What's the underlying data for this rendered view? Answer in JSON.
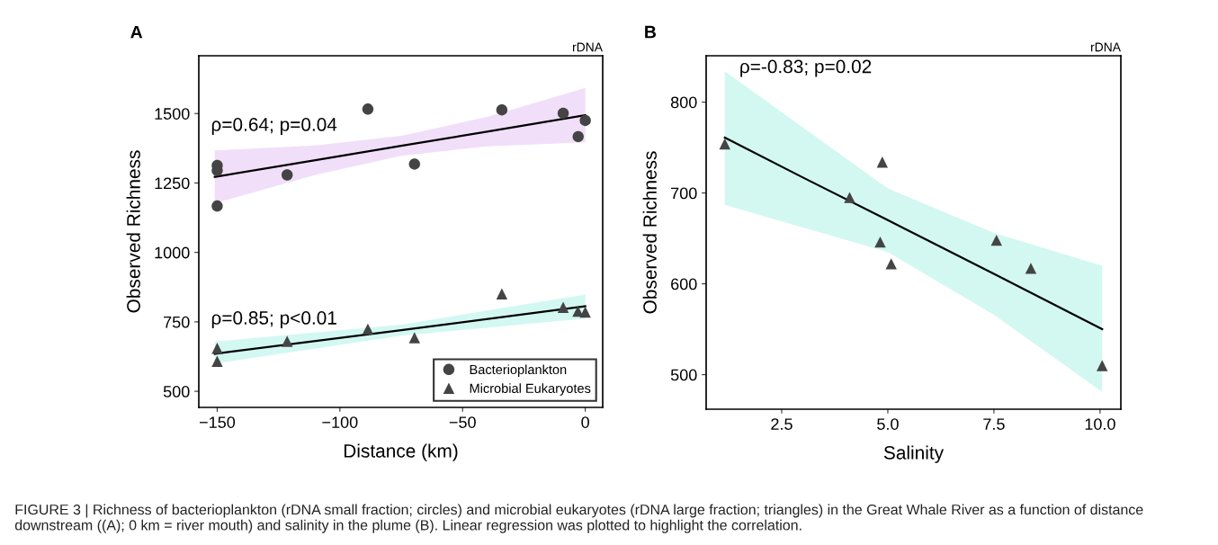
{
  "chart_data": [
    {
      "type": "scatter",
      "title": "A",
      "subtitle": "rDNA",
      "xlabel": "Distance (km)",
      "ylabel": "Observed Richness",
      "xlim": [
        -157.5,
        7.1
      ],
      "ylim": [
        442,
        1708
      ],
      "xticks": [
        {
          "value": -150,
          "label": "−150"
        },
        {
          "value": -100,
          "label": "−100"
        },
        {
          "value": -50,
          "label": "−50"
        },
        0
      ],
      "yticks": [
        500,
        750,
        1000,
        1250,
        1500
      ],
      "grid": false,
      "legend": "bottom right",
      "series": [
        {
          "type": "line",
          "color": "#000000",
          "x": [
            -151,
            -110,
            -75,
            -40,
            0
          ],
          "values": [
            1272,
            1332,
            1384,
            1435,
            1494
          ],
          "lower": [
            1177,
            1279,
            1348,
            1382,
            1396
          ],
          "upper": [
            1367,
            1385,
            1420,
            1488,
            1592
          ]
        },
        {
          "type": "line",
          "color": "#000000",
          "x": [
            -151,
            -75,
            0
          ],
          "values": [
            635,
            720,
            806
          ],
          "lower": [
            600,
            700,
            762
          ],
          "upper": [
            679,
            740,
            848
          ]
        },
        {
          "name": "Bacterioplankton",
          "marker": "circle",
          "color": "#444444",
          "x": [
            -150,
            -150,
            -150,
            -121.5,
            -88.6,
            -69.6,
            -34,
            -9,
            -2.9,
            0
          ],
          "values": [
            1313,
            1295,
            1167,
            1279,
            1516,
            1318,
            1513,
            1501,
            1417,
            1475
          ]
        },
        {
          "name": "Microbial Eukaryotes",
          "marker": "triangle",
          "color": "#444444",
          "x": [
            -150,
            -150,
            -121.5,
            -88.6,
            -69.6,
            -34,
            -9,
            -3,
            0
          ],
          "values": [
            655,
            608,
            680,
            724,
            693,
            851,
            802,
            788,
            785
          ]
        }
      ],
      "annotations": [
        "ρ=0.64; p=0.04",
        "ρ=0.85; p<0.01",
        "FIGURE 3 | Richness of bacterioplankton (rDNA small fraction; circles) and microbial eukaryotes (rDNA large fraction; triangles) in the Great Whale River as a function of distance downstream ((A); 0 km = river mouth) and salinity in the plume (B). Linear regression was plotted to highlight the correlation."
      ]
    },
    {
      "type": "scatter",
      "title": "B",
      "subtitle": "rDNA",
      "xlabel": "Salinity",
      "ylabel": "Observed Richness",
      "xlim": [
        0.72,
        10.49
      ],
      "ylim": [
        462,
        851
      ],
      "xticks": [
        {
          "value": 2.5,
          "label": "2.5"
        },
        {
          "value": 5,
          "label": "5.0"
        },
        {
          "value": 7.5,
          "label": "7.5"
        },
        {
          "value": 10,
          "label": "10.0"
        }
      ],
      "yticks": [
        500,
        600,
        700,
        800
      ],
      "grid": false,
      "series": [
        {
          "type": "line",
          "color": "#000000",
          "x": [
            1.16,
            3,
            5,
            7.5,
            10.05
          ],
          "values": [
            761,
            717,
            670,
            611,
            550
          ],
          "lower": [
            687,
            662,
            635,
            566,
            481
          ],
          "upper": [
            834,
            772,
            705,
            656,
            620
          ]
        },
        {
          "marker": "triangle",
          "color": "#444444",
          "x": [
            1.16,
            4.1,
            4.87,
            4.82,
            5.08,
            7.56,
            8.37,
            10.05
          ],
          "values": [
            754,
            695,
            734,
            646,
            622,
            648,
            617,
            510
          ]
        }
      ],
      "annotations": [
        "ρ=-0.83; p=0.02"
      ]
    }
  ]
}
